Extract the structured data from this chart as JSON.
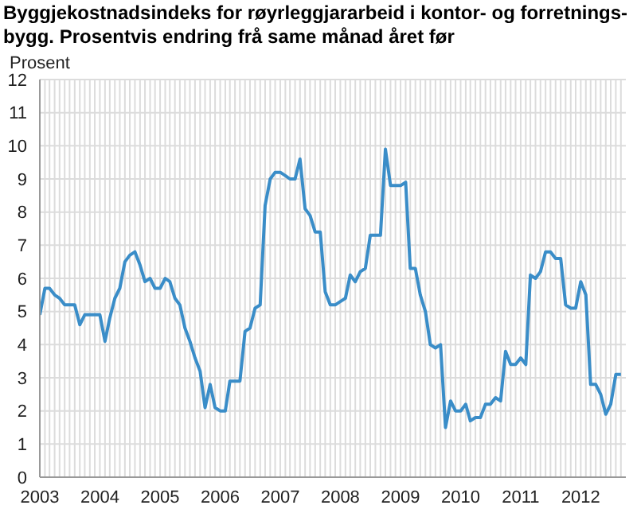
{
  "chart_data": {
    "type": "line",
    "title": "Byggjekostnadsindeks for røyrleggjararbeid i kontor- og forretnings-\nbygg. Prosentvis endring frå same månad året før",
    "ylabel": "Prosent",
    "x": [
      "2003-01",
      "2003-02",
      "2003-03",
      "2003-04",
      "2003-05",
      "2003-06",
      "2003-07",
      "2003-08",
      "2003-09",
      "2003-10",
      "2003-11",
      "2003-12",
      "2004-01",
      "2004-02",
      "2004-03",
      "2004-04",
      "2004-05",
      "2004-06",
      "2004-07",
      "2004-08",
      "2004-09",
      "2004-10",
      "2004-11",
      "2004-12",
      "2005-01",
      "2005-02",
      "2005-03",
      "2005-04",
      "2005-05",
      "2005-06",
      "2005-07",
      "2005-08",
      "2005-09",
      "2005-10",
      "2005-11",
      "2005-12",
      "2006-01",
      "2006-02",
      "2006-03",
      "2006-04",
      "2006-05",
      "2006-06",
      "2006-07",
      "2006-08",
      "2006-09",
      "2006-10",
      "2006-11",
      "2006-12",
      "2007-01",
      "2007-02",
      "2007-03",
      "2007-04",
      "2007-05",
      "2007-06",
      "2007-07",
      "2007-08",
      "2007-09",
      "2007-10",
      "2007-11",
      "2007-12",
      "2008-01",
      "2008-02",
      "2008-03",
      "2008-04",
      "2008-05",
      "2008-06",
      "2008-07",
      "2008-08",
      "2008-09",
      "2008-10",
      "2008-11",
      "2008-12",
      "2009-01",
      "2009-02",
      "2009-03",
      "2009-04",
      "2009-05",
      "2009-06",
      "2009-07",
      "2009-08",
      "2009-09",
      "2009-10",
      "2009-11",
      "2009-12",
      "2010-01",
      "2010-02",
      "2010-03",
      "2010-04",
      "2010-05",
      "2010-06",
      "2010-07",
      "2010-08",
      "2010-09",
      "2010-10",
      "2010-11",
      "2010-12",
      "2011-01",
      "2011-02",
      "2011-03",
      "2011-04",
      "2011-05",
      "2011-06",
      "2011-07",
      "2011-08",
      "2011-09",
      "2011-10",
      "2011-11",
      "2011-12",
      "2012-01",
      "2012-02",
      "2012-03",
      "2012-04",
      "2012-05",
      "2012-06",
      "2012-07",
      "2012-08",
      "2012-09"
    ],
    "series": [
      {
        "color": "#3a8dc8",
        "values": [
          4.9,
          5.7,
          5.7,
          5.5,
          5.4,
          5.2,
          5.2,
          5.2,
          4.6,
          4.9,
          4.9,
          4.9,
          4.9,
          4.1,
          4.8,
          5.4,
          5.7,
          6.5,
          6.7,
          6.8,
          6.4,
          5.9,
          6.0,
          5.7,
          5.7,
          6.0,
          5.9,
          5.4,
          5.2,
          4.5,
          4.1,
          3.6,
          3.2,
          2.1,
          2.8,
          2.1,
          2.0,
          2.0,
          2.9,
          2.9,
          2.9,
          4.4,
          4.5,
          5.1,
          5.2,
          8.2,
          9.0,
          9.2,
          9.2,
          9.1,
          9.0,
          9.0,
          9.6,
          8.1,
          7.9,
          7.4,
          7.4,
          5.6,
          5.2,
          5.2,
          5.3,
          5.4,
          6.1,
          5.9,
          6.2,
          6.3,
          7.3,
          7.3,
          7.3,
          9.9,
          8.8,
          8.8,
          8.8,
          8.9,
          6.3,
          6.3,
          5.5,
          5.0,
          4.0,
          3.9,
          4.0,
          1.5,
          2.3,
          2.0,
          2.0,
          2.2,
          1.7,
          1.8,
          1.8,
          2.2,
          2.2,
          2.4,
          2.3,
          3.8,
          3.4,
          3.4,
          3.6,
          3.4,
          6.1,
          6.0,
          6.2,
          6.8,
          6.8,
          6.6,
          6.6,
          5.2,
          5.1,
          5.1,
          5.9,
          5.5,
          2.8,
          2.8,
          2.5,
          1.9,
          2.2,
          3.1,
          3.1
        ]
      }
    ],
    "xlim": [
      "2003-01",
      "2012-10"
    ],
    "xticks": [
      {
        "value": "2003",
        "label": "2003"
      },
      {
        "value": "2004",
        "label": "2004"
      },
      {
        "value": "2005",
        "label": "2005"
      },
      {
        "value": "2006",
        "label": "2006"
      },
      {
        "value": "2007",
        "label": "2007"
      },
      {
        "value": "2008",
        "label": "2008"
      },
      {
        "value": "2009",
        "label": "2009"
      },
      {
        "value": "2010",
        "label": "2010"
      },
      {
        "value": "2011",
        "label": "2011"
      },
      {
        "value": "2012",
        "label": "2012"
      }
    ],
    "ylim": [
      0,
      12
    ],
    "yticks": [
      0,
      1,
      2,
      3,
      4,
      5,
      6,
      7,
      8,
      9,
      10,
      11,
      12
    ],
    "grid": true,
    "legend": false,
    "marker": "none",
    "line_style": "solid"
  }
}
